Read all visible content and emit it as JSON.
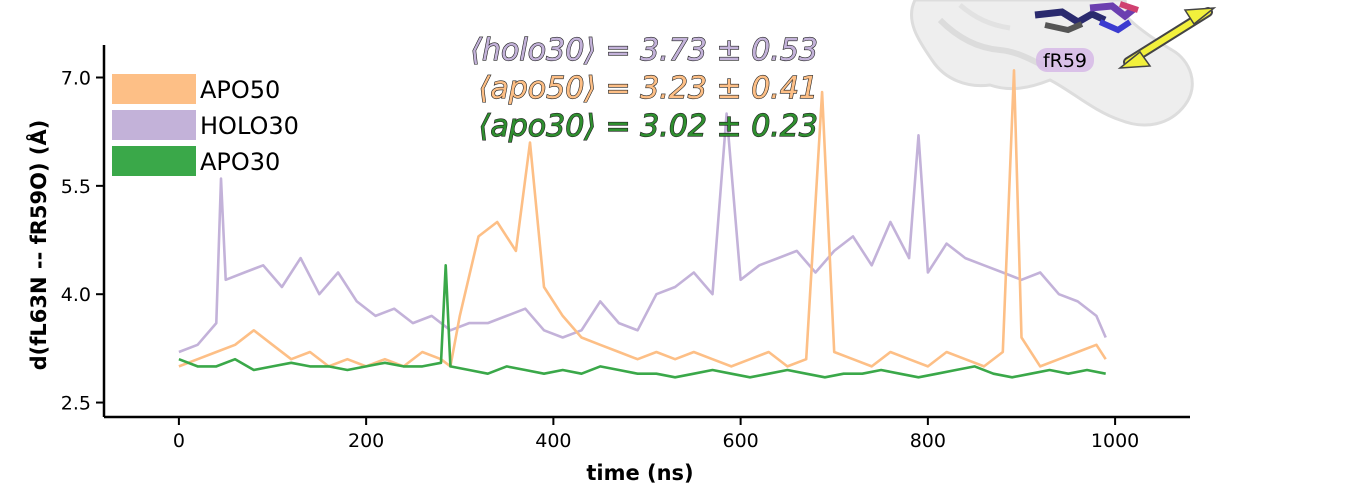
{
  "chart_data": {
    "type": "line",
    "xlabel": "time (ns)",
    "ylabel": "d(fL63N -- fR59O) (Å)",
    "xlim": [
      -80,
      1080
    ],
    "ylim": [
      2.3,
      7.45
    ],
    "x_ticks": [
      0,
      200,
      400,
      600,
      800,
      1000
    ],
    "y_ticks": [
      2.5,
      4.0,
      5.5,
      7.0
    ],
    "x_tick_labels": [
      "0",
      "200",
      "400",
      "600",
      "800",
      "1000"
    ],
    "y_tick_labels": [
      "2.5",
      "4.0",
      "5.5",
      "7.0"
    ],
    "legend": {
      "position": "top-left",
      "entries": [
        {
          "label": "APO50",
          "color": "#fdbf86"
        },
        {
          "label": "HOLO30",
          "color": "#c3b2d9"
        },
        {
          "label": "APO30",
          "color": "#3aa849"
        }
      ]
    },
    "annotations": [
      {
        "text": "⟨holo30⟩ = 3.73 ± 0.53",
        "color": "#c3b2d9"
      },
      {
        "text": "⟨apo50⟩ = 3.23 ± 0.41",
        "color": "#fdbf86"
      },
      {
        "text": "⟨apo30⟩ = 3.02 ± 0.23",
        "color": "#2f8f2f"
      }
    ],
    "inset_label": "fR59",
    "series": [
      {
        "name": "HOLO30",
        "color": "#c3b2d9",
        "draw_order": 1,
        "x": [
          0,
          20,
          40,
          45,
          50,
          70,
          90,
          110,
          130,
          150,
          170,
          190,
          210,
          230,
          250,
          270,
          290,
          310,
          330,
          350,
          370,
          390,
          410,
          430,
          450,
          470,
          490,
          510,
          530,
          550,
          570,
          585,
          600,
          620,
          640,
          660,
          680,
          700,
          720,
          740,
          760,
          780,
          790,
          800,
          820,
          840,
          860,
          880,
          900,
          920,
          940,
          960,
          980,
          990
        ],
        "y": [
          3.2,
          3.3,
          3.6,
          5.6,
          4.2,
          4.3,
          4.4,
          4.1,
          4.5,
          4.0,
          4.3,
          3.9,
          3.7,
          3.8,
          3.6,
          3.7,
          3.5,
          3.6,
          3.6,
          3.7,
          3.8,
          3.5,
          3.4,
          3.5,
          3.9,
          3.6,
          3.5,
          4.0,
          4.1,
          4.3,
          4.0,
          6.5,
          4.2,
          4.4,
          4.5,
          4.6,
          4.3,
          4.6,
          4.8,
          4.4,
          5.0,
          4.5,
          6.2,
          4.3,
          4.7,
          4.5,
          4.4,
          4.3,
          4.2,
          4.3,
          4.0,
          3.9,
          3.7,
          3.4
        ]
      },
      {
        "name": "APO50",
        "color": "#fdbf86",
        "draw_order": 2,
        "x": [
          0,
          20,
          40,
          60,
          80,
          100,
          120,
          140,
          160,
          180,
          200,
          220,
          240,
          260,
          280,
          290,
          300,
          320,
          340,
          360,
          375,
          390,
          410,
          430,
          450,
          470,
          490,
          510,
          530,
          550,
          570,
          590,
          610,
          630,
          650,
          670,
          687,
          700,
          720,
          740,
          760,
          780,
          800,
          820,
          840,
          860,
          880,
          892,
          900,
          920,
          940,
          960,
          980,
          990
        ],
        "y": [
          3.0,
          3.1,
          3.2,
          3.3,
          3.5,
          3.3,
          3.1,
          3.2,
          3.0,
          3.1,
          3.0,
          3.1,
          3.0,
          3.2,
          3.1,
          3.0,
          3.7,
          4.8,
          5.0,
          4.6,
          6.1,
          4.1,
          3.7,
          3.4,
          3.3,
          3.2,
          3.1,
          3.2,
          3.1,
          3.2,
          3.1,
          3.0,
          3.1,
          3.2,
          3.0,
          3.1,
          6.8,
          3.2,
          3.1,
          3.0,
          3.2,
          3.1,
          3.0,
          3.2,
          3.1,
          3.0,
          3.2,
          7.1,
          3.4,
          3.0,
          3.1,
          3.2,
          3.3,
          3.1
        ]
      },
      {
        "name": "APO30",
        "color": "#3aa849",
        "draw_order": 3,
        "x": [
          0,
          20,
          40,
          60,
          80,
          100,
          120,
          140,
          160,
          180,
          200,
          220,
          240,
          260,
          280,
          285,
          290,
          310,
          330,
          350,
          370,
          390,
          410,
          430,
          450,
          470,
          490,
          510,
          530,
          550,
          570,
          590,
          610,
          630,
          650,
          670,
          690,
          710,
          730,
          750,
          770,
          790,
          810,
          830,
          850,
          870,
          890,
          910,
          930,
          950,
          970,
          990
        ],
        "y": [
          3.1,
          3.0,
          3.0,
          3.1,
          2.95,
          3.0,
          3.05,
          3.0,
          3.0,
          2.95,
          3.0,
          3.05,
          3.0,
          3.0,
          3.05,
          4.4,
          3.0,
          2.95,
          2.9,
          3.0,
          2.95,
          2.9,
          2.95,
          2.9,
          3.0,
          2.95,
          2.9,
          2.9,
          2.85,
          2.9,
          2.95,
          2.9,
          2.85,
          2.9,
          2.95,
          2.9,
          2.85,
          2.9,
          2.9,
          2.95,
          2.9,
          2.85,
          2.9,
          2.95,
          3.0,
          2.9,
          2.85,
          2.9,
          2.95,
          2.9,
          2.95,
          2.9
        ]
      }
    ]
  }
}
